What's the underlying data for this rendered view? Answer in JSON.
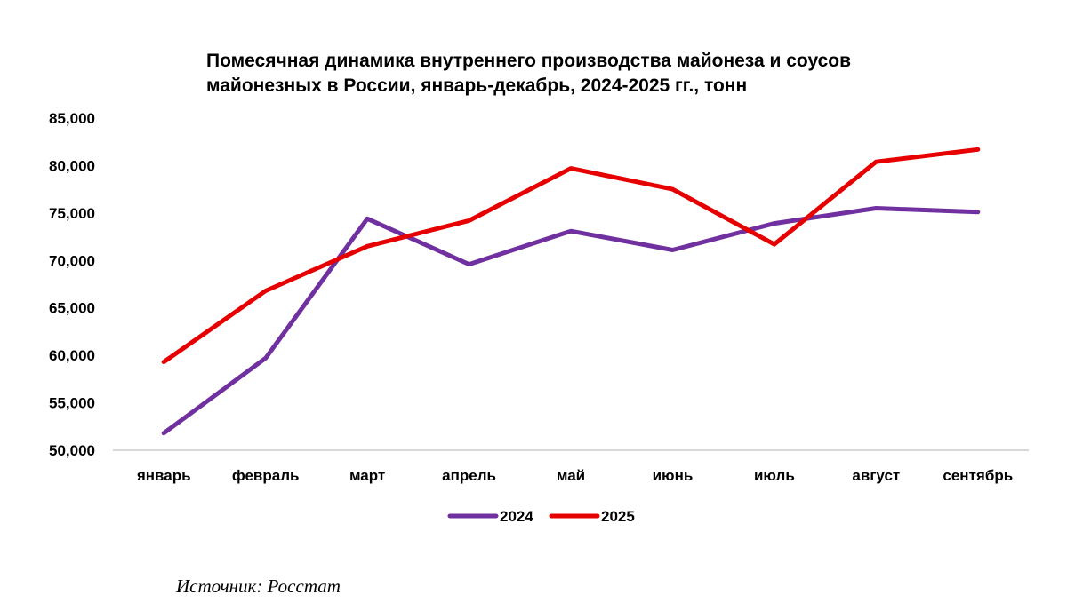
{
  "chart_data": {
    "type": "line",
    "title_lines": [
      "Помесячная динамика  внутреннего производства майонеза и соусов",
      "майонезных в России, январь-декабрь, 2024-2025 гг., тонн"
    ],
    "categories": [
      "январь",
      "февраль",
      "март",
      "апрель",
      "май",
      "июнь",
      "июль",
      "август",
      "сентябрь"
    ],
    "series": [
      {
        "name": "2024",
        "color": "#7030A0",
        "values": [
          51800,
          59700,
          74400,
          69600,
          73100,
          71100,
          73900,
          75500,
          75100
        ]
      },
      {
        "name": "2025",
        "color": "#E60000",
        "values": [
          59300,
          66800,
          71500,
          74200,
          79700,
          77500,
          71700,
          80400,
          81700
        ]
      }
    ],
    "y_ticks": [
      50000,
      55000,
      60000,
      65000,
      70000,
      75000,
      80000,
      85000
    ],
    "y_tick_labels": [
      "50,000",
      "55,000",
      "60,000",
      "65,000",
      "70,000",
      "75,000",
      "80,000",
      "85,000"
    ],
    "ylim": [
      50000,
      85000
    ],
    "xlabel": "",
    "ylabel": "",
    "grid": false,
    "legend_position": "bottom-center"
  },
  "source_text": "Источник: Росстат"
}
